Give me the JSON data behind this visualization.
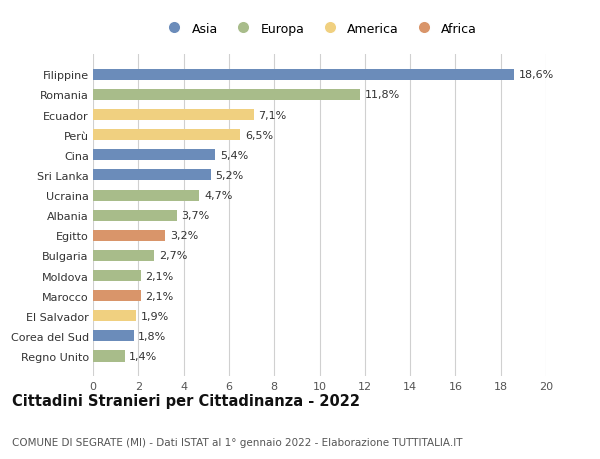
{
  "categories": [
    "Filippine",
    "Romania",
    "Ecuador",
    "Perù",
    "Cina",
    "Sri Lanka",
    "Ucraina",
    "Albania",
    "Egitto",
    "Bulgaria",
    "Moldova",
    "Marocco",
    "El Salvador",
    "Corea del Sud",
    "Regno Unito"
  ],
  "values": [
    18.6,
    11.8,
    7.1,
    6.5,
    5.4,
    5.2,
    4.7,
    3.7,
    3.2,
    2.7,
    2.1,
    2.1,
    1.9,
    1.8,
    1.4
  ],
  "continents": [
    "Asia",
    "Europa",
    "America",
    "America",
    "Asia",
    "Asia",
    "Europa",
    "Europa",
    "Africa",
    "Europa",
    "Europa",
    "Africa",
    "America",
    "Asia",
    "Europa"
  ],
  "colors": {
    "Asia": "#6b8cba",
    "Europa": "#a8bc8a",
    "America": "#f0d080",
    "Africa": "#d9956a"
  },
  "legend_order": [
    "Asia",
    "Europa",
    "America",
    "Africa"
  ],
  "xlim": [
    0,
    20
  ],
  "xticks": [
    0,
    2,
    4,
    6,
    8,
    10,
    12,
    14,
    16,
    18,
    20
  ],
  "title": "Cittadini Stranieri per Cittadinanza - 2022",
  "subtitle": "COMUNE DI SEGRATE (MI) - Dati ISTAT al 1° gennaio 2022 - Elaborazione TUTTITALIA.IT",
  "background_color": "#ffffff",
  "grid_color": "#d0d0d0",
  "bar_height": 0.55,
  "label_fontsize": 8.0,
  "tick_fontsize": 8.0,
  "title_fontsize": 10.5,
  "subtitle_fontsize": 7.5
}
